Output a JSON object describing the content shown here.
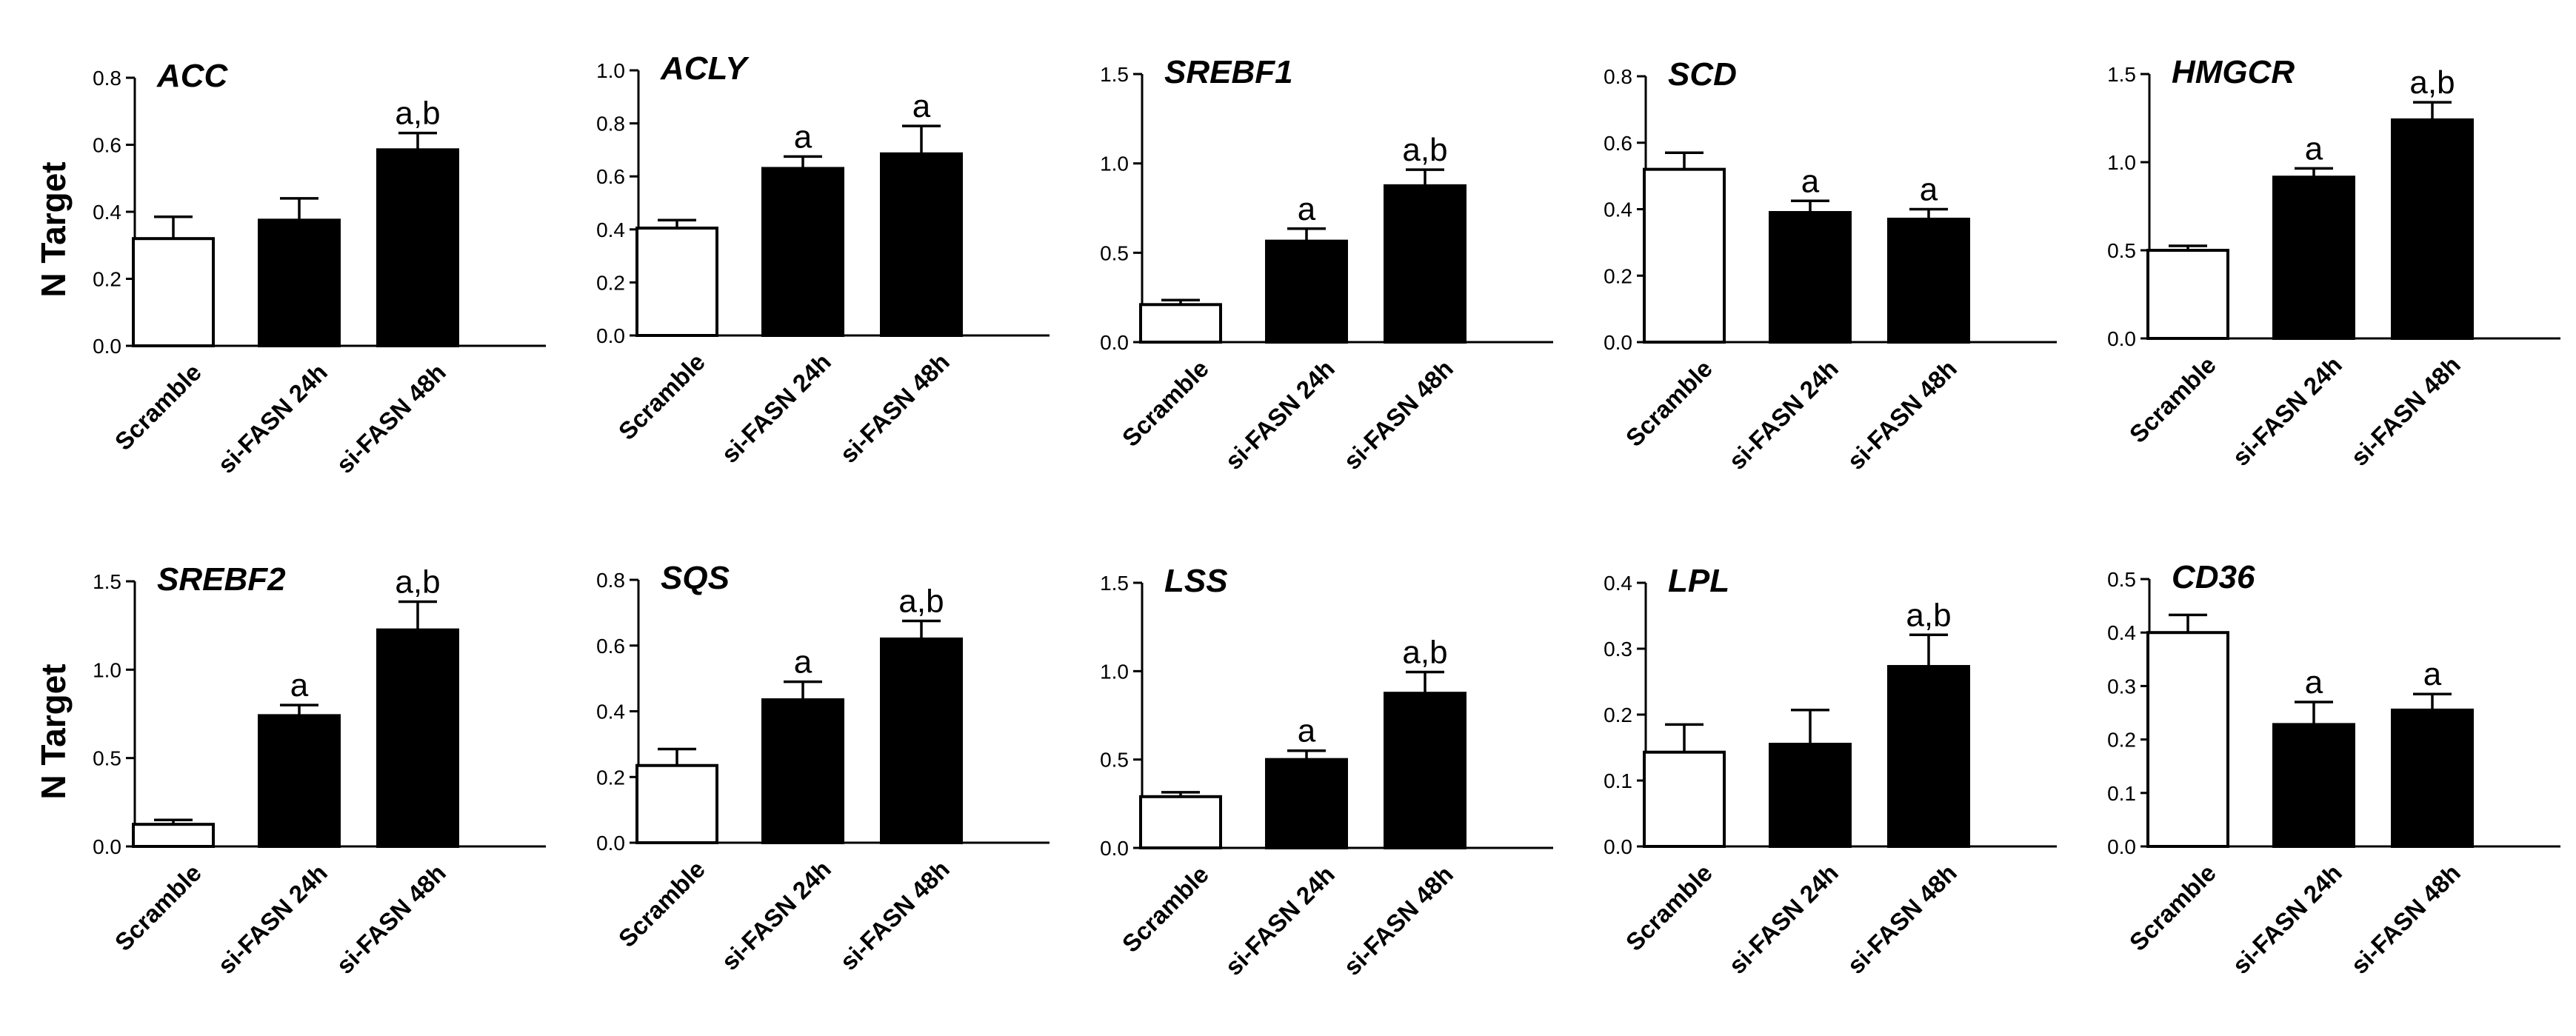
{
  "figure": {
    "y_axis_label": "N Target",
    "categories": [
      "Scramble",
      "si-FASN 24h",
      "si-FASN 48h"
    ],
    "colors": {
      "bar_fill": [
        "#ffffff",
        "#000000",
        "#000000"
      ],
      "stroke": "#000000"
    }
  },
  "chart_data": [
    {
      "type": "bar",
      "title": "ACC",
      "ylabel": "N Target",
      "ylim": [
        0,
        0.8
      ],
      "yticks": [
        "0.0",
        "0.2",
        "0.4",
        "0.6",
        "0.8"
      ],
      "categories": [
        "Scramble",
        "si-FASN 24h",
        "si-FASN 48h"
      ],
      "values": [
        0.32,
        0.375,
        0.585
      ],
      "errors": [
        0.065,
        0.065,
        0.05
      ],
      "annotations": [
        "",
        "",
        "a,b"
      ]
    },
    {
      "type": "bar",
      "title": "ACLY",
      "ylabel": "",
      "ylim": [
        0,
        1.0
      ],
      "yticks": [
        "0.0",
        "0.2",
        "0.4",
        "0.6",
        "0.8",
        "1.0"
      ],
      "categories": [
        "Scramble",
        "si-FASN 24h",
        "si-FASN 48h"
      ],
      "values": [
        0.405,
        0.63,
        0.685
      ],
      "errors": [
        0.03,
        0.045,
        0.105
      ],
      "annotations": [
        "",
        "a",
        "a"
      ]
    },
    {
      "type": "bar",
      "title": "SREBF1",
      "ylabel": "",
      "ylim": [
        0,
        1.5
      ],
      "yticks": [
        "0.0",
        "0.5",
        "1.0",
        "1.5"
      ],
      "categories": [
        "Scramble",
        "si-FASN 24h",
        "si-FASN 48h"
      ],
      "values": [
        0.21,
        0.565,
        0.875
      ],
      "errors": [
        0.025,
        0.07,
        0.09
      ],
      "annotations": [
        "",
        "a",
        "a,b"
      ]
    },
    {
      "type": "bar",
      "title": "SCD",
      "ylabel": "",
      "ylim": [
        0,
        0.8
      ],
      "yticks": [
        "0.0",
        "0.2",
        "0.4",
        "0.6",
        "0.8"
      ],
      "categories": [
        "Scramble",
        "si-FASN 24h",
        "si-FASN 48h"
      ],
      "values": [
        0.52,
        0.39,
        0.37
      ],
      "errors": [
        0.05,
        0.035,
        0.03
      ],
      "annotations": [
        "",
        "a",
        "a"
      ]
    },
    {
      "type": "bar",
      "title": "HMGCR",
      "ylabel": "",
      "ylim": [
        0,
        1.5
      ],
      "yticks": [
        "0.0",
        "0.5",
        "1.0",
        "1.5"
      ],
      "categories": [
        "Scramble",
        "si-FASN 24h",
        "si-FASN 48h"
      ],
      "values": [
        0.5,
        0.915,
        1.24
      ],
      "errors": [
        0.025,
        0.05,
        0.1
      ],
      "annotations": [
        "",
        "a",
        "a,b"
      ]
    },
    {
      "type": "bar",
      "title": "SREBF2",
      "ylabel": "N Target",
      "ylim": [
        0,
        1.5
      ],
      "yticks": [
        "0.0",
        "0.5",
        "1.0",
        "1.5"
      ],
      "categories": [
        "Scramble",
        "si-FASN 24h",
        "si-FASN 48h"
      ],
      "values": [
        0.125,
        0.74,
        1.225
      ],
      "errors": [
        0.025,
        0.06,
        0.16
      ],
      "annotations": [
        "",
        "a",
        "a,b"
      ]
    },
    {
      "type": "bar",
      "title": "SQS",
      "ylabel": "",
      "ylim": [
        0,
        0.8
      ],
      "yticks": [
        "0.0",
        "0.2",
        "0.4",
        "0.6",
        "0.8"
      ],
      "categories": [
        "Scramble",
        "si-FASN 24h",
        "si-FASN 48h"
      ],
      "values": [
        0.235,
        0.435,
        0.62
      ],
      "errors": [
        0.05,
        0.055,
        0.055
      ],
      "annotations": [
        "",
        "a",
        "a,b"
      ]
    },
    {
      "type": "bar",
      "title": "LSS",
      "ylabel": "",
      "ylim": [
        0,
        1.5
      ],
      "yticks": [
        "0.0",
        "0.5",
        "1.0",
        "1.5"
      ],
      "categories": [
        "Scramble",
        "si-FASN 24h",
        "si-FASN 48h"
      ],
      "values": [
        0.29,
        0.5,
        0.875
      ],
      "errors": [
        0.025,
        0.05,
        0.12
      ],
      "annotations": [
        "",
        "a",
        "a,b"
      ]
    },
    {
      "type": "bar",
      "title": "LPL",
      "ylabel": "",
      "ylim": [
        0,
        0.4
      ],
      "yticks": [
        "0.0",
        "0.1",
        "0.2",
        "0.3",
        "0.4"
      ],
      "categories": [
        "Scramble",
        "si-FASN 24h",
        "si-FASN 48h"
      ],
      "values": [
        0.143,
        0.155,
        0.273
      ],
      "errors": [
        0.042,
        0.052,
        0.048
      ],
      "annotations": [
        "",
        "",
        "a,b"
      ]
    },
    {
      "type": "bar",
      "title": "CD36",
      "ylabel": "",
      "ylim": [
        0,
        0.5
      ],
      "yticks": [
        "0.0",
        "0.1",
        "0.2",
        "0.3",
        "0.4",
        "0.5"
      ],
      "categories": [
        "Scramble",
        "si-FASN 24h",
        "si-FASN 48h"
      ],
      "values": [
        0.4,
        0.228,
        0.255
      ],
      "errors": [
        0.033,
        0.042,
        0.03
      ],
      "annotations": [
        "",
        "a",
        "a"
      ]
    }
  ]
}
